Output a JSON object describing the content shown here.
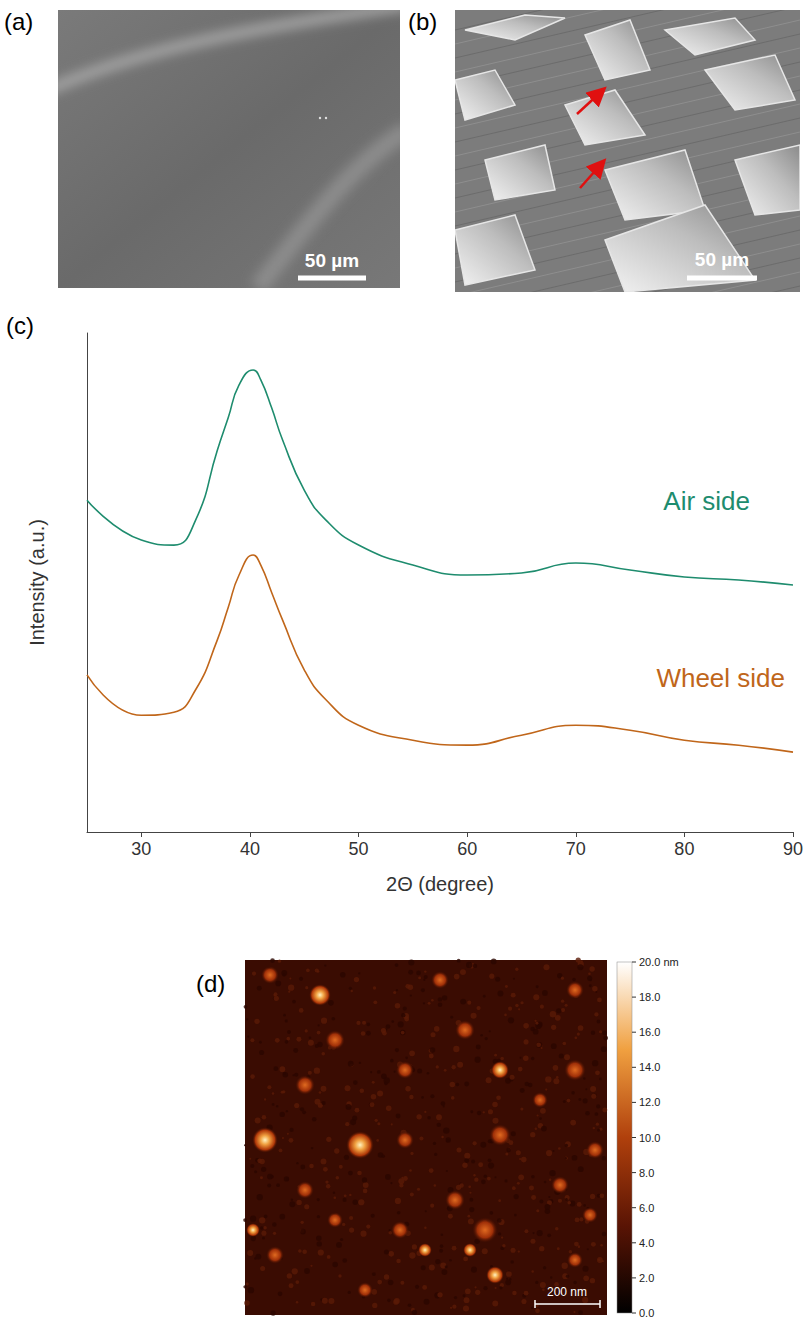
{
  "panel_a": {
    "label": "(a)",
    "scale_bar": "50 µm"
  },
  "panel_b": {
    "label": "(b)",
    "scale_bar": "50 µm"
  },
  "chart_data": {
    "label": "(c)",
    "type": "line",
    "x_label": "2Θ (degree)",
    "y_label": "Intensity (a.u.)",
    "xlim": [
      25,
      90
    ],
    "xticks": [
      30,
      40,
      50,
      60,
      70,
      80,
      90
    ],
    "ylim": [
      0,
      100
    ],
    "tick_labels": "x",
    "grid": false,
    "x": [
      25,
      30,
      33,
      35,
      37,
      38,
      39,
      40.3,
      41,
      42,
      43,
      45,
      47,
      50,
      55,
      60,
      65,
      70,
      75,
      80,
      85,
      90
    ],
    "series": [
      {
        "name": "Air side",
        "color": "#1e8c6e",
        "values": [
          66.5,
          58.5,
          57.5,
          62.5,
          76.5,
          83,
          89.6,
          92.6,
          90.6,
          85,
          78.6,
          68.5,
          62.5,
          57.5,
          53.5,
          51.5,
          51.9,
          53.9,
          52.5,
          51.1,
          50.5,
          49.5
        ]
      },
      {
        "name": "Wheel side",
        "color": "#c0661a",
        "values": [
          31.5,
          23.4,
          24,
          28.5,
          38.5,
          45,
          51.5,
          55.5,
          53.5,
          48,
          42.5,
          32.5,
          26.5,
          21.4,
          18.4,
          17.4,
          19.4,
          21.4,
          20.4,
          18.4,
          17.4,
          16
        ]
      }
    ]
  },
  "panel_d": {
    "label": "(d)",
    "scale_bar": "200 nm",
    "color_bar": {
      "range": [
        0,
        20
      ],
      "ticks": [
        {
          "value": 20,
          "label": "20.0 nm"
        },
        {
          "value": 18,
          "label": "18.0"
        },
        {
          "value": 16,
          "label": "16.0"
        },
        {
          "value": 14,
          "label": "14.0"
        },
        {
          "value": 12,
          "label": "12.0"
        },
        {
          "value": 10,
          "label": "10.0"
        },
        {
          "value": 8,
          "label": "8.0"
        },
        {
          "value": 6,
          "label": "6.0"
        },
        {
          "value": 4,
          "label": "4.0"
        },
        {
          "value": 2,
          "label": "2.0"
        },
        {
          "value": 0,
          "label": "0.0"
        }
      ]
    }
  }
}
